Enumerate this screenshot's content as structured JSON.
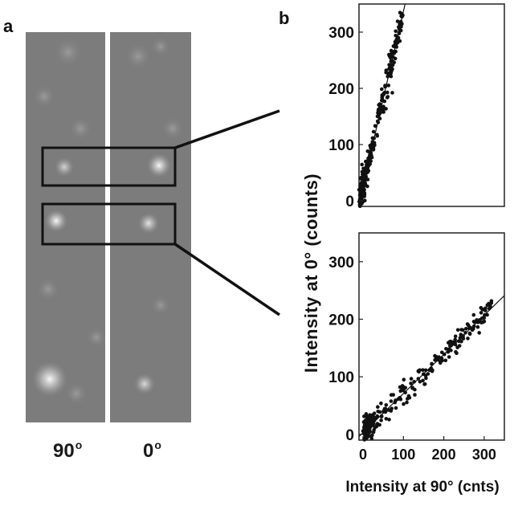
{
  "panel_a": {
    "letter": "a",
    "channels": [
      {
        "label": "90",
        "superscript": "o"
      },
      {
        "label": "0",
        "superscript": "o"
      }
    ]
  },
  "panel_b": {
    "letter": "b",
    "y_axis_label": "Intensity at 0° (counts)",
    "x_axis_label": "Intensity at 90° (cnts)"
  },
  "chart_data": [
    {
      "type": "scatter",
      "title": "",
      "xlabel": "",
      "ylabel": "Intensity at 0° (counts)",
      "xlim": [
        0,
        350
      ],
      "ylim": [
        -10,
        350
      ],
      "yticks": [
        0,
        100,
        200,
        300
      ],
      "xticks": [],
      "fit_line": {
        "slope": 3.2,
        "intercept": -5
      },
      "points_description": "dense cluster near origin (x 0-30, y 0-60) plus band along line up to x~110, y~270",
      "n_points": 300
    },
    {
      "type": "scatter",
      "title": "",
      "xlabel": "Intensity at 90° (cnts)",
      "ylabel": "Intensity at 0° (counts)",
      "xlim": [
        -10,
        350
      ],
      "ylim": [
        -10,
        350
      ],
      "xticks": [
        0,
        100,
        200,
        300
      ],
      "yticks": [
        0,
        100,
        200,
        300
      ],
      "fit_line": {
        "slope": 0.68,
        "intercept": 3
      },
      "points_description": "dense cluster near origin plus band along line out to x~320, y~220",
      "n_points": 300
    }
  ]
}
